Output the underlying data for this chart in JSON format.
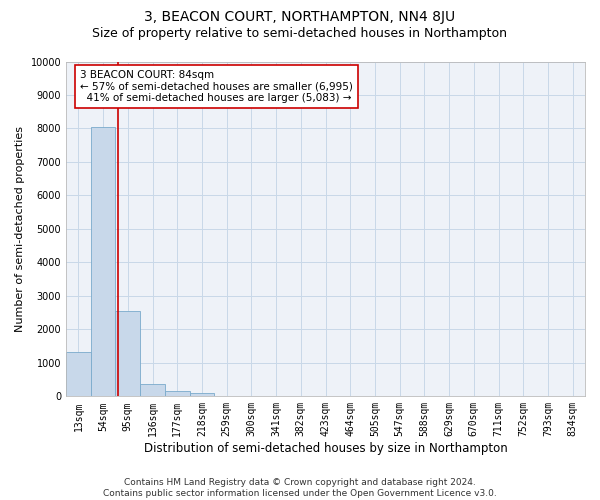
{
  "title": "3, BEACON COURT, NORTHAMPTON, NN4 8JU",
  "subtitle": "Size of property relative to semi-detached houses in Northampton",
  "xlabel": "Distribution of semi-detached houses by size in Northampton",
  "ylabel": "Number of semi-detached properties",
  "categories": [
    "13sqm",
    "54sqm",
    "95sqm",
    "136sqm",
    "177sqm",
    "218sqm",
    "259sqm",
    "300sqm",
    "341sqm",
    "382sqm",
    "423sqm",
    "464sqm",
    "505sqm",
    "547sqm",
    "588sqm",
    "629sqm",
    "670sqm",
    "711sqm",
    "752sqm",
    "793sqm",
    "834sqm"
  ],
  "values": [
    1310,
    8050,
    2540,
    380,
    145,
    110,
    0,
    0,
    0,
    0,
    0,
    0,
    0,
    0,
    0,
    0,
    0,
    0,
    0,
    0,
    0
  ],
  "bar_color": "#c8d8ea",
  "bar_edge_color": "#7aaacc",
  "property_label": "3 BEACON COURT: 84sqm",
  "pct_smaller": 57,
  "count_smaller": 6995,
  "pct_larger": 41,
  "count_larger": 5083,
  "vline_position": 1.62,
  "ylim": [
    0,
    10000
  ],
  "yticks": [
    0,
    1000,
    2000,
    3000,
    4000,
    5000,
    6000,
    7000,
    8000,
    9000,
    10000
  ],
  "annotation_box_color": "#ffffff",
  "annotation_box_edge": "#cc0000",
  "vline_color": "#cc0000",
  "footer_line1": "Contains HM Land Registry data © Crown copyright and database right 2024.",
  "footer_line2": "Contains public sector information licensed under the Open Government Licence v3.0.",
  "bg_color": "#eef2f8",
  "grid_color": "#c8d8e8",
  "title_fontsize": 10,
  "subtitle_fontsize": 9,
  "xlabel_fontsize": 8.5,
  "ylabel_fontsize": 8,
  "tick_fontsize": 7,
  "footer_fontsize": 6.5,
  "ann_fontsize": 7.5
}
